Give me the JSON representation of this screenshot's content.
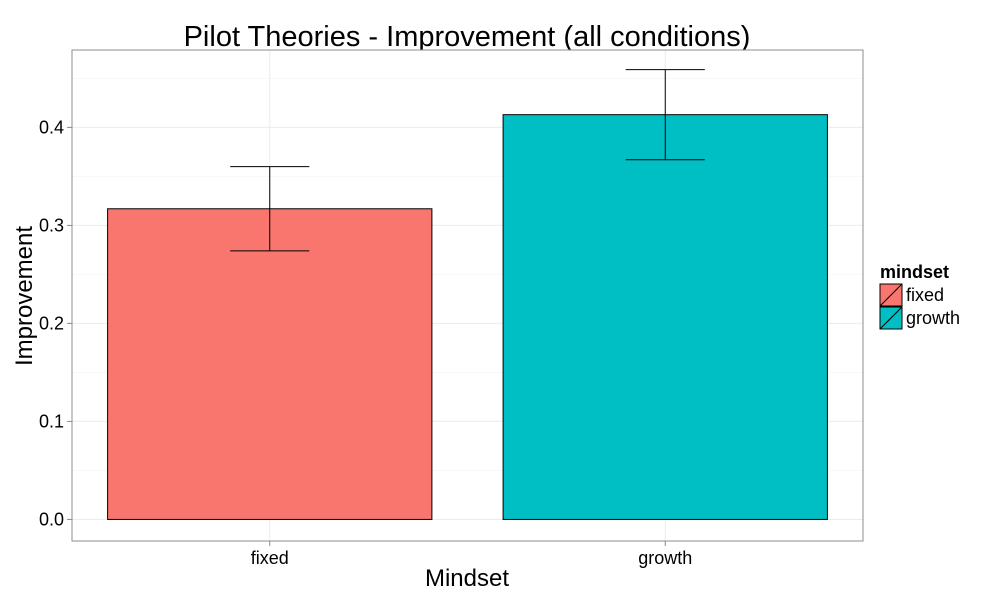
{
  "chart_data": {
    "type": "bar",
    "title": "Pilot Theories - Improvement  (all conditions)",
    "xlabel": "Mindset",
    "ylabel": "Improvement",
    "categories": [
      "fixed",
      "growth"
    ],
    "values": [
      0.317,
      0.413
    ],
    "error_low": [
      0.274,
      0.367
    ],
    "error_high": [
      0.36,
      0.459
    ],
    "colors": [
      "#F8766D",
      "#00BFC4"
    ],
    "ylim": [
      -0.022,
      0.479
    ],
    "yticks": [
      0.0,
      0.1,
      0.2,
      0.3,
      0.4
    ],
    "ytick_labels": [
      "0.0",
      "0.1",
      "0.2",
      "0.3",
      "0.4"
    ],
    "grid": true,
    "legend": {
      "title": "mindset",
      "placement": "right",
      "entries": [
        "fixed",
        "growth"
      ]
    }
  }
}
